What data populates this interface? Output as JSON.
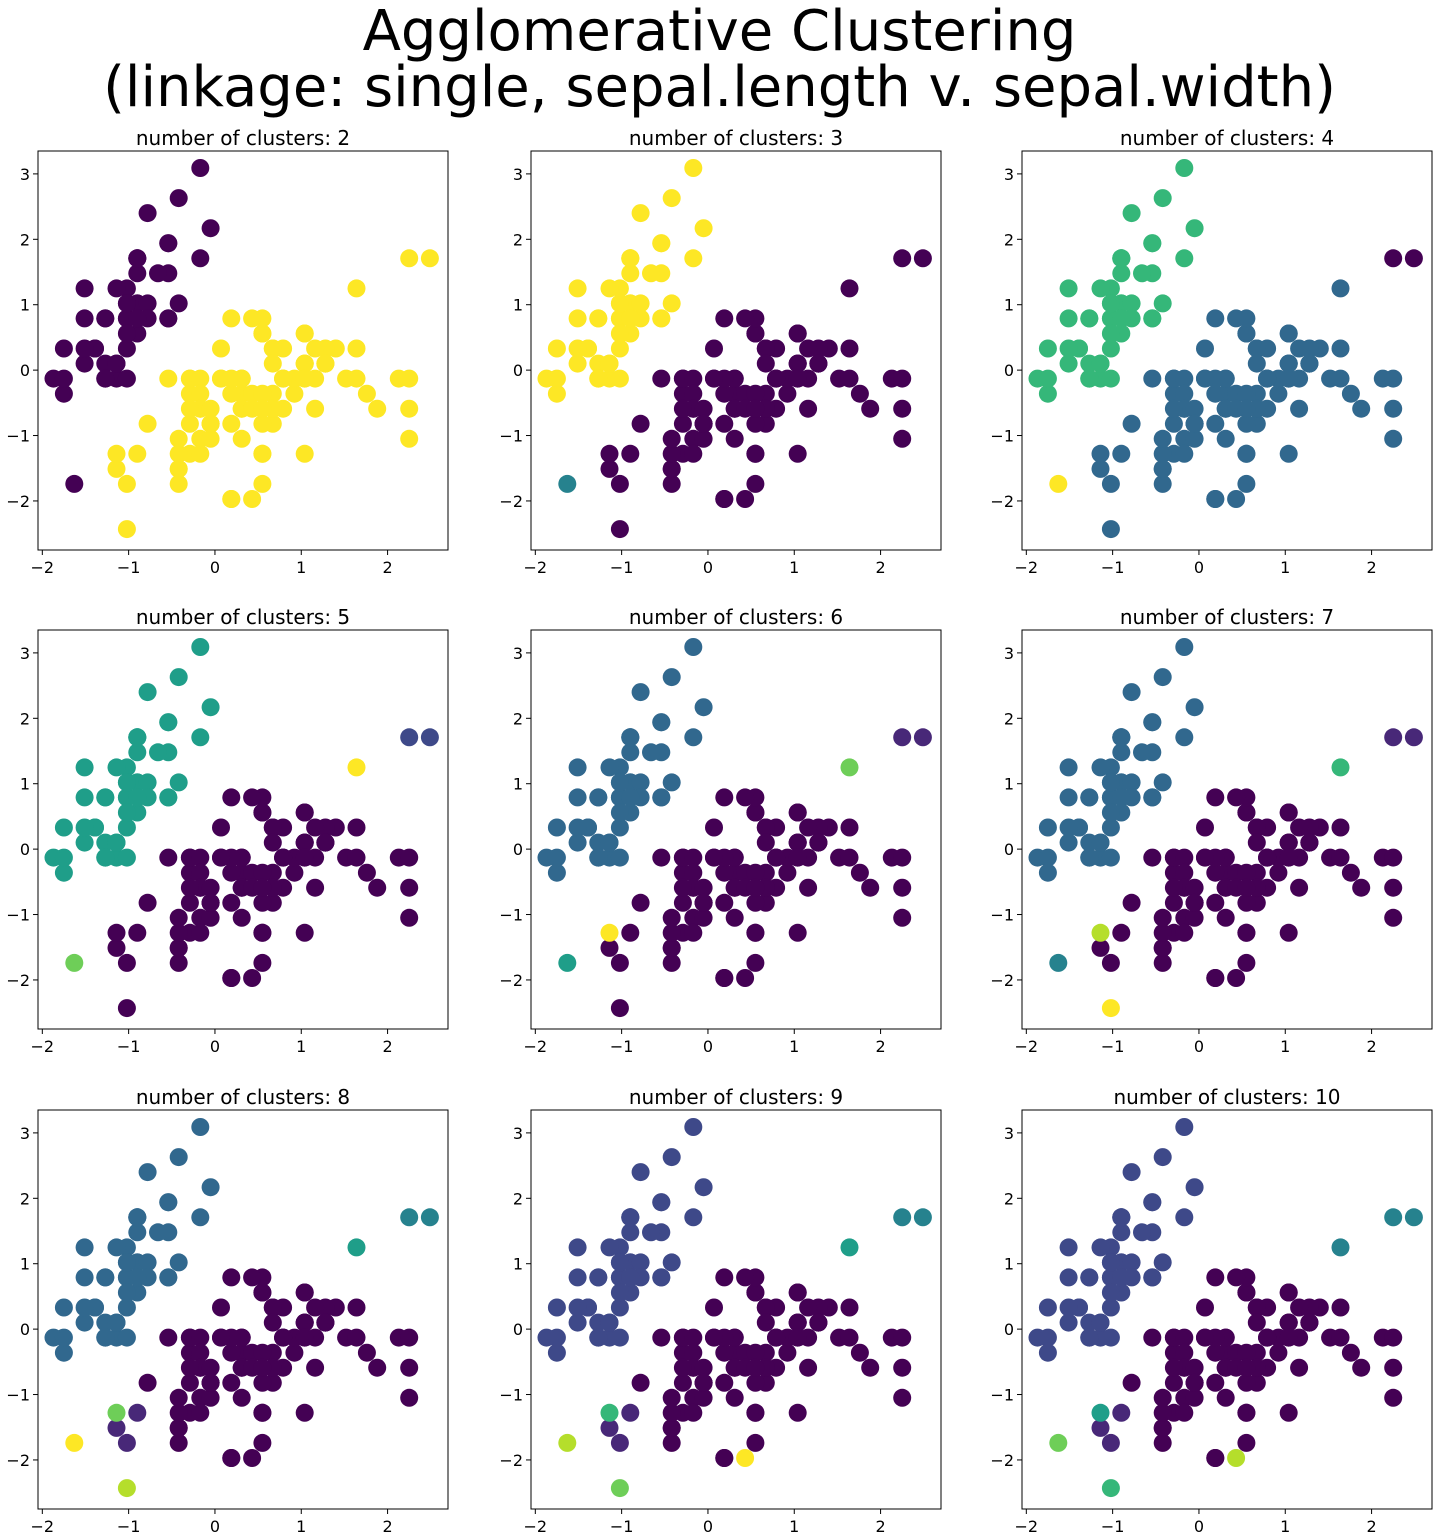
{
  "suptitle": {
    "line1": "Agglomerative Clustering",
    "line2": "(linkage: single, sepal.length v. sepal.width)"
  },
  "colors": {
    "viridis": [
      "#440154",
      "#482878",
      "#3e4989",
      "#31688e",
      "#26828e",
      "#1f9e89",
      "#35b779",
      "#6ece58",
      "#b5de2b",
      "#fde725"
    ]
  },
  "chart_data": {
    "type": "scatter",
    "xlim": [
      -2.05,
      2.7
    ],
    "ylim": [
      -2.75,
      3.35
    ],
    "xticks": [
      -2,
      -1,
      0,
      1,
      2
    ],
    "yticks": [
      -2,
      -1,
      0,
      1,
      2,
      3
    ],
    "xtick_labels": [
      "−2",
      "−1",
      "0",
      "1",
      "2"
    ],
    "ytick_labels": [
      "−2",
      "−1",
      "0",
      "1",
      "2",
      "3"
    ],
    "points": [
      [
        -0.9,
        1.02
      ],
      [
        -1.14,
        -0.13
      ],
      [
        -1.39,
        0.33
      ],
      [
        -1.51,
        0.1
      ],
      [
        -1.02,
        1.25
      ],
      [
        -0.54,
        1.94
      ],
      [
        -1.51,
        0.79
      ],
      [
        -1.02,
        0.79
      ],
      [
        -1.75,
        -0.36
      ],
      [
        -1.14,
        0.1
      ],
      [
        -0.54,
        1.48
      ],
      [
        -1.27,
        0.79
      ],
      [
        -1.27,
        -0.13
      ],
      [
        -1.87,
        -0.13
      ],
      [
        -0.05,
        2.17
      ],
      [
        -0.17,
        3.09
      ],
      [
        -0.54,
        1.94
      ],
      [
        -0.9,
        1.02
      ],
      [
        -0.17,
        1.71
      ],
      [
        -0.9,
        1.71
      ],
      [
        -0.54,
        0.79
      ],
      [
        -0.9,
        1.48
      ],
      [
        -1.51,
        1.25
      ],
      [
        -0.9,
        0.56
      ],
      [
        -1.27,
        0.79
      ],
      [
        -1.02,
        -0.13
      ],
      [
        -1.02,
        0.79
      ],
      [
        -0.78,
        1.02
      ],
      [
        -0.78,
        0.79
      ],
      [
        -1.39,
        0.33
      ],
      [
        -1.27,
        0.1
      ],
      [
        -0.54,
        0.79
      ],
      [
        -0.78,
        2.4
      ],
      [
        -0.42,
        2.63
      ],
      [
        -1.14,
        0.1
      ],
      [
        -1.02,
        0.33
      ],
      [
        -0.42,
        1.02
      ],
      [
        -1.14,
        1.25
      ],
      [
        -1.75,
        -0.13
      ],
      [
        -0.9,
        0.79
      ],
      [
        -1.02,
        1.02
      ],
      [
        -1.63,
        -1.74
      ],
      [
        -1.75,
        0.33
      ],
      [
        -1.02,
        1.02
      ],
      [
        -0.9,
        1.71
      ],
      [
        -1.27,
        -0.13
      ],
      [
        -0.9,
        1.71
      ],
      [
        -1.51,
        0.33
      ],
      [
        -0.66,
        1.48
      ],
      [
        -1.02,
        0.56
      ],
      [
        1.4,
        0.33
      ],
      [
        0.67,
        0.33
      ],
      [
        1.28,
        0.1
      ],
      [
        -0.42,
        -1.74
      ],
      [
        0.79,
        -0.59
      ],
      [
        -0.17,
        -0.59
      ],
      [
        0.55,
        0.56
      ],
      [
        -1.14,
        -1.51
      ],
      [
        0.92,
        -0.36
      ],
      [
        -0.78,
        -0.82
      ],
      [
        -1.02,
        -2.43
      ],
      [
        0.07,
        -0.13
      ],
      [
        0.19,
        -1.97
      ],
      [
        0.31,
        -0.36
      ],
      [
        -0.29,
        -0.36
      ],
      [
        1.04,
        0.1
      ],
      [
        -0.29,
        -0.13
      ],
      [
        -0.05,
        -0.82
      ],
      [
        0.43,
        -1.97
      ],
      [
        -0.29,
        -1.28
      ],
      [
        0.07,
        0.33
      ],
      [
        0.31,
        -0.59
      ],
      [
        0.55,
        -1.28
      ],
      [
        0.31,
        -0.59
      ],
      [
        0.67,
        -0.36
      ],
      [
        0.92,
        -0.13
      ],
      [
        1.16,
        -0.59
      ],
      [
        1.04,
        -0.13
      ],
      [
        0.19,
        -0.36
      ],
      [
        -0.17,
        -1.05
      ],
      [
        -0.42,
        -1.51
      ],
      [
        -0.42,
        -1.51
      ],
      [
        -0.05,
        -0.82
      ],
      [
        0.19,
        -0.82
      ],
      [
        -0.54,
        -0.13
      ],
      [
        0.19,
        0.79
      ],
      [
        1.04,
        0.1
      ],
      [
        0.55,
        -1.74
      ],
      [
        -0.29,
        -0.13
      ],
      [
        -0.42,
        -1.28
      ],
      [
        -0.42,
        -1.05
      ],
      [
        0.31,
        -0.13
      ],
      [
        -0.05,
        -1.05
      ],
      [
        -1.02,
        -1.74
      ],
      [
        -0.29,
        -0.82
      ],
      [
        -0.17,
        -0.13
      ],
      [
        -0.17,
        -0.36
      ],
      [
        0.43,
        -0.36
      ],
      [
        -0.9,
        -1.28
      ],
      [
        -0.17,
        -0.59
      ],
      [
        0.55,
        0.56
      ],
      [
        -0.05,
        -0.82
      ],
      [
        1.52,
        -0.13
      ],
      [
        0.55,
        -0.36
      ],
      [
        0.79,
        -0.13
      ],
      [
        2.13,
        -0.13
      ],
      [
        -1.14,
        -1.28
      ],
      [
        1.76,
        -0.36
      ],
      [
        1.04,
        -1.28
      ],
      [
        1.64,
        1.25
      ],
      [
        0.79,
        0.33
      ],
      [
        0.67,
        -0.82
      ],
      [
        1.16,
        -0.13
      ],
      [
        -0.17,
        -1.28
      ],
      [
        -0.05,
        -0.59
      ],
      [
        0.67,
        0.33
      ],
      [
        0.79,
        -0.13
      ],
      [
        2.25,
        1.71
      ],
      [
        2.25,
        -1.05
      ],
      [
        0.19,
        -1.97
      ],
      [
        1.28,
        0.33
      ],
      [
        -0.29,
        -0.59
      ],
      [
        2.25,
        -0.59
      ],
      [
        0.55,
        -0.82
      ],
      [
        1.04,
        0.56
      ],
      [
        1.64,
        0.33
      ],
      [
        0.43,
        -0.59
      ],
      [
        0.31,
        -0.13
      ],
      [
        0.67,
        -0.59
      ],
      [
        1.64,
        -0.13
      ],
      [
        1.88,
        -0.59
      ],
      [
        2.49,
        1.71
      ],
      [
        0.67,
        -0.59
      ],
      [
        0.55,
        -0.59
      ],
      [
        0.31,
        -1.05
      ],
      [
        2.25,
        -0.13
      ],
      [
        0.55,
        0.79
      ],
      [
        0.67,
        0.1
      ],
      [
        0.19,
        -0.13
      ],
      [
        1.28,
        0.1
      ],
      [
        1.04,
        0.1
      ],
      [
        1.28,
        0.1
      ],
      [
        -0.05,
        -0.82
      ],
      [
        1.16,
        0.33
      ],
      [
        1.04,
        0.56
      ],
      [
        1.04,
        -0.13
      ],
      [
        0.55,
        -1.28
      ],
      [
        0.79,
        -0.13
      ],
      [
        0.43,
        0.79
      ],
      [
        0.07,
        -0.13
      ]
    ],
    "panels": [
      {
        "title": "number of clusters: 2",
        "k": 2,
        "blue_color": 0,
        "special": [
          {
            "point": 41,
            "color": 0
          }
        ]
      },
      {
        "title": "number of clusters: 3",
        "k": 3,
        "blue_color": 9,
        "ver_color": 0,
        "special": [
          {
            "point": 41,
            "color": 4
          }
        ]
      },
      {
        "title": "number of clusters: 4",
        "k": 4,
        "blue_color": 6,
        "ver_color": 3,
        "special": [
          {
            "point": 41,
            "color": 9
          },
          {
            "point": 117,
            "color": 0
          },
          {
            "point": 131,
            "color": 0
          }
        ]
      },
      {
        "title": "number of clusters: 5",
        "k": 5,
        "blue_color": 5,
        "ver_color": 0,
        "special": [
          {
            "point": 41,
            "color": 7
          },
          {
            "point": 117,
            "color": 2
          },
          {
            "point": 131,
            "color": 2
          },
          {
            "point": 109,
            "color": 9
          }
        ]
      },
      {
        "title": "number of clusters: 6",
        "k": 6,
        "blue_color": 3,
        "ver_color": 0,
        "special": [
          {
            "point": 41,
            "color": 5
          },
          {
            "point": 117,
            "color": 1
          },
          {
            "point": 131,
            "color": 1
          },
          {
            "point": 109,
            "color": 7
          },
          {
            "point": 106,
            "color": 9
          }
        ]
      },
      {
        "title": "number of clusters: 7",
        "k": 7,
        "blue_color": 3,
        "ver_color": 0,
        "special": [
          {
            "point": 41,
            "color": 4
          },
          {
            "point": 117,
            "color": 1
          },
          {
            "point": 131,
            "color": 1
          },
          {
            "point": 109,
            "color": 6
          },
          {
            "point": 106,
            "color": 8
          },
          {
            "point": 60,
            "color": 9
          }
        ]
      },
      {
        "title": "number of clusters: 8",
        "k": 8,
        "blue_color": 3,
        "ver_color": 0,
        "special": [
          {
            "point": 41,
            "color": 9
          },
          {
            "point": 117,
            "color": 4
          },
          {
            "point": 131,
            "color": 4
          },
          {
            "point": 109,
            "color": 5
          },
          {
            "point": 106,
            "color": 7
          },
          {
            "point": 60,
            "color": 8
          },
          {
            "point": 57,
            "color": 1
          },
          {
            "point": 98,
            "color": 1
          },
          {
            "point": 93,
            "color": 1
          }
        ]
      },
      {
        "title": "number of clusters: 9",
        "k": 9,
        "blue_color": 2,
        "ver_color": 0,
        "special": [
          {
            "point": 41,
            "color": 8
          },
          {
            "point": 117,
            "color": 4
          },
          {
            "point": 131,
            "color": 4
          },
          {
            "point": 109,
            "color": 5
          },
          {
            "point": 106,
            "color": 6
          },
          {
            "point": 60,
            "color": 7
          },
          {
            "point": 57,
            "color": 1
          },
          {
            "point": 98,
            "color": 1
          },
          {
            "point": 93,
            "color": 1
          },
          {
            "point": 68,
            "color": 9
          }
        ]
      },
      {
        "title": "number of clusters: 10",
        "k": 10,
        "blue_color": 2,
        "ver_color": 0,
        "special": [
          {
            "point": 41,
            "color": 7
          },
          {
            "point": 117,
            "color": 4
          },
          {
            "point": 131,
            "color": 4
          },
          {
            "point": 109,
            "color": 4
          },
          {
            "point": 106,
            "color": 5
          },
          {
            "point": 60,
            "color": 6
          },
          {
            "point": 57,
            "color": 1
          },
          {
            "point": 98,
            "color": 1
          },
          {
            "point": 93,
            "color": 1
          },
          {
            "point": 68,
            "color": 8
          }
        ]
      }
    ]
  }
}
